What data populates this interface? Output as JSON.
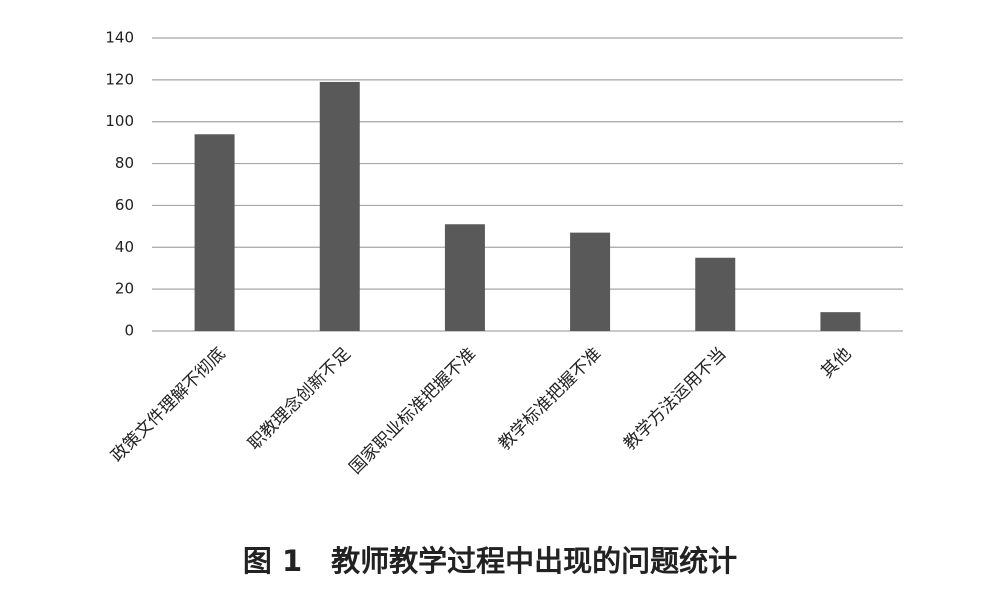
{
  "chart_data": {
    "type": "bar",
    "title": "图 1　教师教学过程中出现的问题统计",
    "categories": [
      "政策文件理解不彻底",
      "职教理念创新不足",
      "国家职业标准把握不准",
      "教学标准把握不准",
      "教学方法运用不当",
      "其他"
    ],
    "values": [
      94,
      119,
      51,
      47,
      35,
      9
    ],
    "color": "#595959",
    "ylim": [
      0,
      140
    ],
    "yticks": [
      0,
      20,
      40,
      60,
      80,
      100,
      120,
      140
    ],
    "grid": true
  }
}
